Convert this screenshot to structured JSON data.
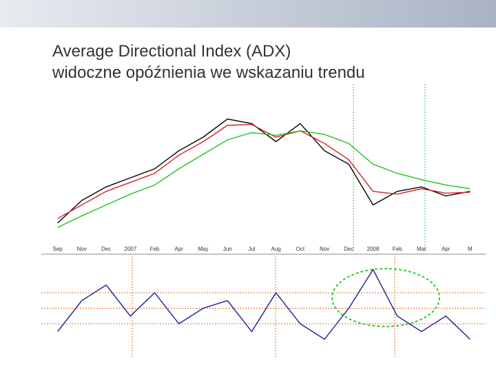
{
  "title": [
    "Average Directional Index (ADX)",
    "widoczne opóźnienia we wskazaniu trendu"
  ],
  "chart_data": [
    {
      "type": "line",
      "categories": [
        "Sep",
        "Nov",
        "Dec",
        "2007",
        "Feb",
        "Apr",
        "May",
        "Jun",
        "Jul",
        "Aug",
        "Oct",
        "Nov",
        "Dec",
        "2008",
        "Feb",
        "Mar",
        "Apr",
        "M"
      ],
      "ylim": [
        34000,
        50000
      ],
      "series": [
        {
          "color": "#000000",
          "values": [
            36000,
            38500,
            40000,
            41000,
            42000,
            44000,
            45500,
            47500,
            47000,
            45000,
            47000,
            44000,
            42500,
            38000,
            39500,
            40000,
            39000,
            39500
          ]
        },
        {
          "color": "#d42020",
          "values": [
            36500,
            38000,
            39500,
            40500,
            41500,
            43500,
            45000,
            46800,
            46900,
            45500,
            46200,
            44800,
            43000,
            39500,
            39200,
            39800,
            39300,
            39400
          ]
        },
        {
          "color": "#20c020",
          "values": [
            35500,
            36800,
            38000,
            39200,
            40200,
            42000,
            43600,
            45200,
            46000,
            45700,
            46200,
            45800,
            44800,
            42500,
            41500,
            40800,
            40200,
            39800
          ]
        }
      ]
    },
    {
      "type": "line",
      "ylim": [
        0,
        60
      ],
      "levels": [
        20,
        30,
        40
      ],
      "series": [
        {
          "color": "#1a1a8c",
          "values": [
            15,
            35,
            45,
            25,
            40,
            20,
            30,
            35,
            15,
            40,
            20,
            10,
            30,
            55,
            25,
            15,
            25,
            10
          ]
        }
      ]
    }
  ]
}
